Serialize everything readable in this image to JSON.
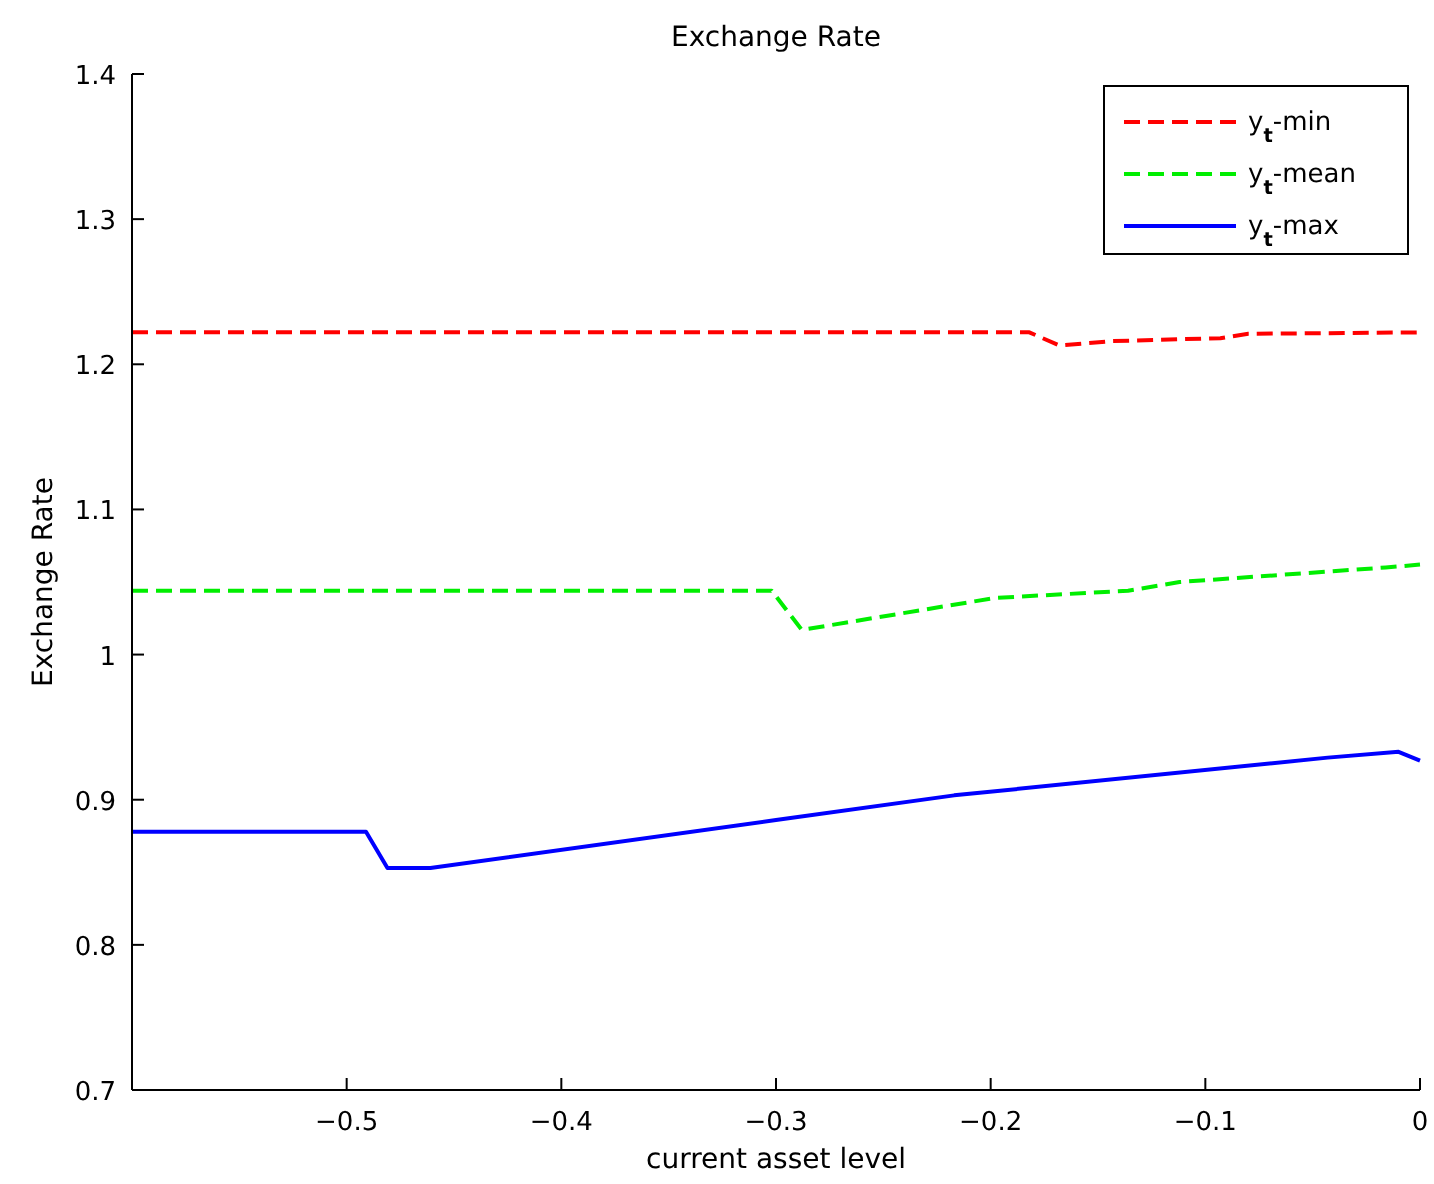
{
  "chart_data": {
    "type": "line",
    "title": "Exchange Rate",
    "xlabel": "current asset level",
    "ylabel": "Exchange Rate",
    "xlim": [
      -0.6,
      0
    ],
    "xticks": [
      -0.5,
      -0.4,
      -0.3,
      -0.2,
      -0.1,
      0
    ],
    "ylim": [
      0.7,
      1.4
    ],
    "yticks": [
      0.7,
      0.8,
      0.9,
      1,
      1.1,
      1.2,
      1.3,
      1.4
    ],
    "grid": false,
    "legend": "top right",
    "series": [
      {
        "name": "y$_{t}$-min",
        "color": "#ff0000",
        "line_style": "dashed",
        "x": [
          -0.6,
          -0.182,
          -0.168,
          -0.143,
          -0.093,
          -0.08,
          0
        ],
        "values": [
          1.222,
          1.222,
          1.213,
          1.216,
          1.218,
          1.221,
          1.222
        ]
      },
      {
        "name": "y$_{t}$-mean",
        "color": "#00ee00",
        "line_style": "dashed",
        "x": [
          -0.6,
          -0.302,
          -0.288,
          -0.198,
          -0.136,
          -0.112,
          -0.016,
          0
        ],
        "values": [
          1.044,
          1.044,
          1.017,
          1.039,
          1.044,
          1.05,
          1.06,
          1.062
        ]
      },
      {
        "name": "y$_{t}$-max",
        "color": "#0000ff",
        "line_style": "solid",
        "x": [
          -0.6,
          -0.491,
          -0.481,
          -0.461,
          -0.3,
          -0.217,
          -0.043,
          -0.01,
          0
        ],
        "values": [
          0.878,
          0.878,
          0.853,
          0.853,
          0.886,
          0.903,
          0.929,
          0.933,
          0.927
        ]
      }
    ]
  }
}
